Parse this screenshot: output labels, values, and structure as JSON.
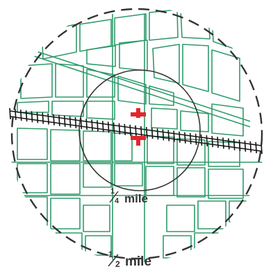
{
  "colors": {
    "streets": "#2e9a6a",
    "rings": "#333333",
    "railroad": "#111111",
    "station_marker": "#e3262b",
    "background": "#ffffff"
  },
  "labels": {
    "quarter_mile": {
      "numerator": "1",
      "denominator": "4",
      "unit": "mile"
    },
    "half_mile": {
      "numerator": "1",
      "denominator": "2",
      "unit": "mile"
    }
  },
  "legend_features": {
    "inner_ring_style": "solid",
    "outer_ring_style": "dashed",
    "railroad_icon": "railroad-track-icon",
    "station_icon": "red-cross-station-icon"
  }
}
